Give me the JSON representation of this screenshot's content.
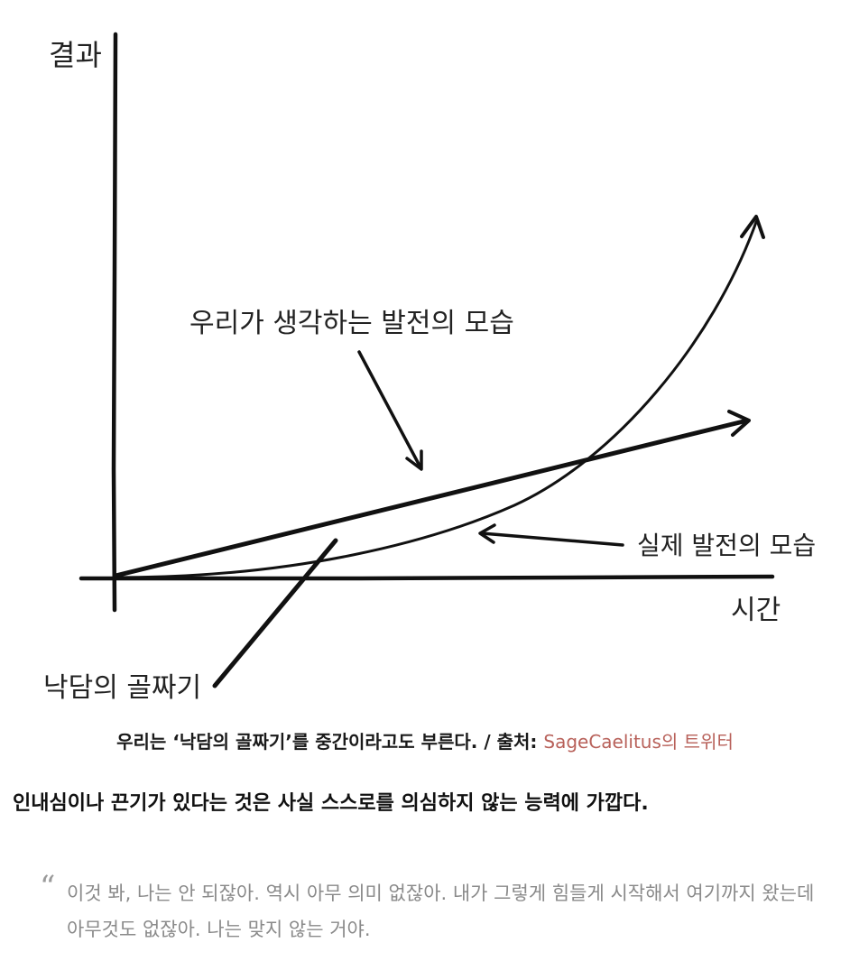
{
  "diagram": {
    "y_axis_label": "결과",
    "x_axis_label": "시간",
    "label_expected": "우리가 생각하는 발전의 모습",
    "label_actual": "실제 발전의 모습",
    "label_valley": "낙담의 골짜기"
  },
  "caption": {
    "main": "우리는 ‘낙담의 골짜기’를 중간이라고도 부른다. / 출처: ",
    "source_link": "SageCaelitus",
    "source_tail": "의 트위터"
  },
  "body_text": "인내심이나 끈기가 있다는 것은 사실 스스로를 의심하지 않는 능력에 가깝다.",
  "quote": {
    "mark": "“",
    "text": "이것 봐, 나는 안 되잖아. 역시 아무 의미 없잖아. 내가 그렇게 힘들게 시작해서 여기까지 왔는데 아무것도 없잖아. 나는 맞지 않는 거야."
  }
}
